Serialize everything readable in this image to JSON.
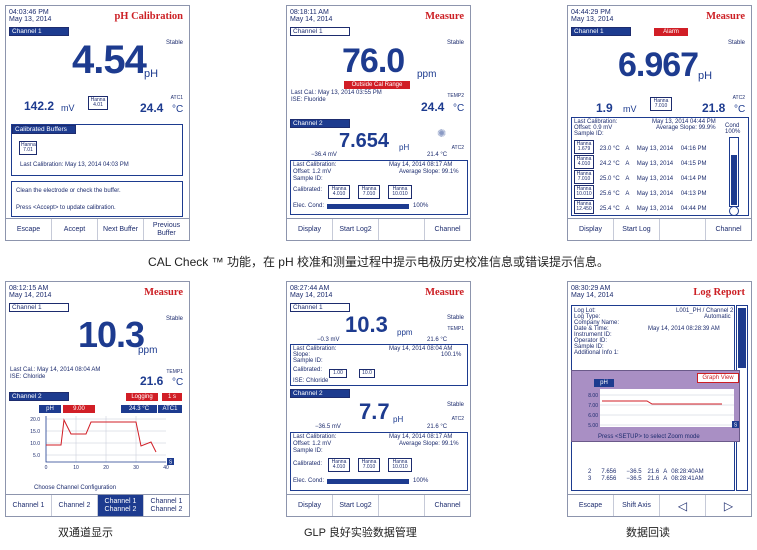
{
  "top_caption": "CAL Check ™ 功能，在 pH 校准和测量过程中提示电极历史校准信息或错误提示信息。",
  "captions": [
    "双通道显示",
    "GLP 良好实验数据管理",
    "数据回读"
  ],
  "s1": {
    "time": "04:03:46 PM",
    "date": "May 13, 2014",
    "title": "pH Calibration",
    "channel": "Channel 1",
    "stable": "Stable",
    "value": "4.54",
    "unit": "pH",
    "mv": "142.2",
    "mv_unit": "mV",
    "buffer": "4.01",
    "buffer_brand": "Hanna",
    "atc": "ATC1",
    "temp": "24.4",
    "temp_unit": "°C",
    "cal_title": "Calibrated Buffers",
    "cal_buf": "7.01",
    "last_cal": "Last Calibration: May 13, 2014  04:03 PM",
    "msg1": "Clean the electrode or check the buffer.",
    "msg2": "Press <Accept> to update calibration.",
    "buttons": [
      "Escape",
      "Accept",
      "Next Buffer",
      "Previous Buffer"
    ]
  },
  "s2": {
    "time": "08:18:11 AM",
    "date": "May 14, 2014",
    "title": "Measure",
    "channel": "Channel 1",
    "stable": "Stable",
    "value": "76.0",
    "unit": "ppm",
    "alert": "Outside Cal Range",
    "last_cal": "Last Cal.: May 13, 2014 03:55 PM",
    "ise": "ISE: Fluoride",
    "tempc": "TEMP2",
    "temp": "24.4",
    "temp_unit": "°C",
    "ch2": "Channel 2",
    "v2": "7.654",
    "u2": "pH",
    "mv2": "−36.4 mV",
    "t2": "21.4 °C",
    "atc2": "ATC2",
    "g1": "Last Calibration:",
    "g1v": "May 14, 2014    08:17 AM",
    "g2": "Offset: 1.2 mV",
    "g2v": "Average Slope:  99.1%",
    "g3": "Sample ID:",
    "g4": "Calibrated:",
    "b": [
      "4.010",
      "7.010",
      "10.010"
    ],
    "g5": "Elec. Cond:",
    "g5v": "100%",
    "buttons": [
      "Display",
      "Start Log2",
      "",
      "Channel"
    ]
  },
  "s3": {
    "time": "04:44:29 PM",
    "date": "May 13, 2014",
    "title": "Measure",
    "channel": "Channel 1",
    "alarm": "Alarm",
    "stable": "Stable",
    "value": "6.967",
    "unit": "pH",
    "mv": "1.9",
    "mv_unit": "mV",
    "buffer": "7.010",
    "atc": "ATC2",
    "temp": "21.8",
    "temp_unit": "°C",
    "h1": "Last Calibration:",
    "h1v": "May 13, 2014    04:44 PM",
    "h2": "Offset: 0.9 mV",
    "h2v": "Average Slope:  99.9%",
    "h3": "Sample ID:",
    "cond": "Cond",
    "cond_pct": "100%",
    "rows": [
      {
        "buf": "1.679",
        "t": "23.0 °C",
        "m": "A",
        "d": "May 13, 2014",
        "h": "04:16 PM"
      },
      {
        "buf": "4.010",
        "t": "24.2 °C",
        "m": "A",
        "d": "May 13, 2014",
        "h": "04:15 PM"
      },
      {
        "buf": "7.010",
        "t": "25.0 °C",
        "m": "A",
        "d": "May 13, 2014",
        "h": "04:14 PM"
      },
      {
        "buf": "10.010",
        "t": "25.6 °C",
        "m": "A",
        "d": "May 13, 2014",
        "h": "04:13 PM"
      },
      {
        "buf": "12.450",
        "t": "25.4 °C",
        "m": "A",
        "d": "May 13, 2014",
        "h": "04:44 PM"
      }
    ],
    "buttons": [
      "Display",
      "Start Log",
      "",
      "Channel"
    ]
  },
  "s4": {
    "time": "08:12:15 AM",
    "date": "May 14, 2014",
    "title": "Measure",
    "channel": "Channel 1",
    "stable": "Stable",
    "value": "10.3",
    "unit": "ppm",
    "last_cal": "Last Cal.: May 14, 2014 08:04 AM",
    "ise": "ISE: Chloride",
    "tempc": "TEMP1",
    "temp": "21.6",
    "temp_unit": "°C",
    "ch2": "Channel 2",
    "logging": "Logging",
    "logint": "1 s",
    "ph": "pH",
    "phv": "9.00",
    "tv": "24.3 °C",
    "atc": "ATC1",
    "yt": [
      "20.0",
      "15.0",
      "10.0",
      "5.0"
    ],
    "xt": [
      "0",
      "10",
      "20",
      "30",
      "40"
    ],
    "sbtn": "S",
    "cfg": "Choose Channel Configuration",
    "buttons": [
      "Channel 1",
      "Channel 2",
      "Channel 1 Channel 2",
      "Channel 1 Channel 2"
    ]
  },
  "s5": {
    "time": "08:27:44 AM",
    "date": "May 14, 2014",
    "title": "Measure",
    "channel": "Channel 1",
    "value": "10.3",
    "unit": "ppm",
    "stable": "Stable",
    "temp1": "TEMP1",
    "mv": "−0.3 mV",
    "t1": "21.6 °C",
    "l1": "Last Calibration:",
    "l1v": "May 14, 2014    08:04 AM",
    "l2": "Slope:",
    "l2v": "100.1%",
    "l3": "Sample ID:",
    "l4": "Calibrated:",
    "b1": [
      "1.00",
      "10.0"
    ],
    "l5": "ISE: Chloride",
    "ch2": "Channel 2",
    "v2": "7.7",
    "u2": "pH",
    "stable2": "Stable",
    "atc2": "ATC2",
    "mv2": "−36.5 mV",
    "t2": "21.6 °C",
    "g1": "Last Calibration:",
    "g1v": "May 14, 2014    08:17 AM",
    "g2": "Offset: 1.2 mV",
    "g2v": "Average Slope:  99.1%",
    "g3": "Sample ID:",
    "g4": "Calibrated:",
    "b2": [
      "4.010",
      "7.010",
      "10.010"
    ],
    "g5": "Elec. Cond:",
    "g5v": "100%",
    "buttons": [
      "Display",
      "Start Log2",
      "",
      "Channel"
    ]
  },
  "s6": {
    "time": "08:30:29 AM",
    "date": "May 14, 2014",
    "title": "Log Report",
    "r": [
      [
        "Log Lot:",
        "L001_PH / Channel 2"
      ],
      [
        "Log Type:",
        "Automatic"
      ],
      [
        "Company Name:",
        ""
      ],
      [
        "Date & Time:",
        "May 14, 2014  08:28:39 AM"
      ],
      [
        "Instrument ID:",
        ""
      ],
      [
        "Operator ID:",
        ""
      ],
      [
        "Sample ID:",
        ""
      ],
      [
        "Additional Info 1:",
        ""
      ]
    ],
    "gv": "Graph View",
    "ph": "pH",
    "yt": [
      "8.00",
      "7.00",
      "6.00",
      "5.00"
    ],
    "sbtn": "S",
    "hint": "Press <SETUP> to select Zoom mode",
    "rows": [
      [
        "2",
        "7.656",
        "−36.5",
        "21.6",
        "A",
        "08:28:40AM"
      ],
      [
        "3",
        "7.656",
        "−36.5",
        "21.6",
        "A",
        "08:28:41AM"
      ]
    ],
    "buttons": [
      "Escape",
      "Shift Axis",
      "◁",
      "▷"
    ]
  }
}
